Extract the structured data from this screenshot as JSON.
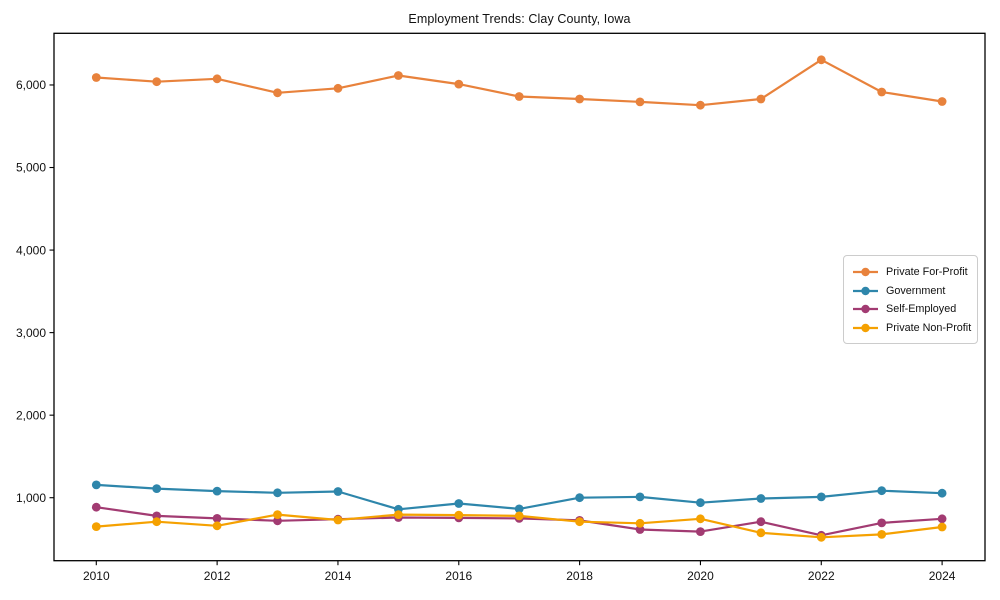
{
  "chart_data": {
    "type": "line",
    "title": "Employment Trends: Clay County, Iowa",
    "xlabel": "",
    "ylabel": "",
    "x": [
      2010,
      2011,
      2012,
      2013,
      2014,
      2015,
      2016,
      2017,
      2018,
      2019,
      2020,
      2021,
      2022,
      2023,
      2024
    ],
    "xticks": [
      2010,
      2012,
      2014,
      2016,
      2018,
      2020,
      2022,
      2024
    ],
    "yticks": [
      1000,
      2000,
      3000,
      4000,
      5000,
      6000
    ],
    "xlim": [
      2009.3,
      2024.71
    ],
    "ylim": [
      237,
      6626
    ],
    "grid": false,
    "legend_position": "center-right",
    "background_color": "#ffffff",
    "text_color": "#111111",
    "spine_color": "#000000",
    "series": [
      {
        "name": "Private For-Profit",
        "slug": "private-for-profit",
        "color": "#E8823C",
        "values": [
          6090,
          6040,
          6075,
          5905,
          5960,
          6115,
          6010,
          5860,
          5830,
          5795,
          5755,
          5830,
          6305,
          5915,
          5800
        ]
      },
      {
        "name": "Government",
        "slug": "government",
        "color": "#2E86AB",
        "values": [
          1155,
          1110,
          1080,
          1060,
          1075,
          860,
          930,
          865,
          1000,
          1010,
          940,
          990,
          1010,
          1085,
          1055
        ]
      },
      {
        "name": "Self-Employed",
        "slug": "self-employed",
        "color": "#A23B72",
        "values": [
          885,
          780,
          750,
          720,
          740,
          760,
          755,
          750,
          725,
          615,
          590,
          710,
          545,
          695,
          745
        ]
      },
      {
        "name": "Private Non-Profit",
        "slug": "private-non-profit",
        "color": "#F5A101",
        "values": [
          650,
          710,
          660,
          795,
          730,
          795,
          790,
          780,
          710,
          690,
          745,
          575,
          520,
          555,
          645
        ]
      }
    ]
  }
}
